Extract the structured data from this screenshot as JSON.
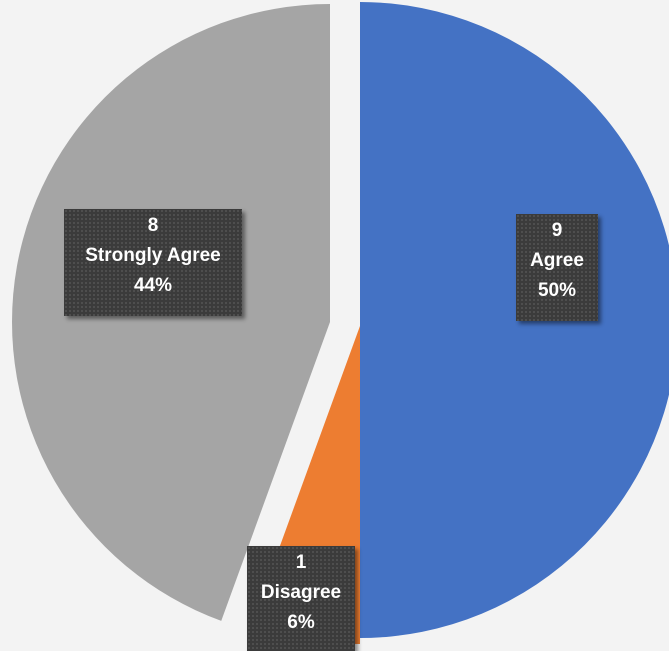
{
  "chart_data": {
    "type": "pie",
    "title": "",
    "categories": [
      "Agree",
      "Disagree",
      "Strongly Agree"
    ],
    "values": [
      9,
      1,
      8
    ],
    "percents": [
      "50%",
      "6%",
      "44%"
    ],
    "colors": [
      "#4472c4",
      "#ed7d31",
      "#a5a5a5"
    ],
    "start_angle_deg": 0,
    "exploded": true,
    "legend": "none",
    "data_labels": {
      "show_value": true,
      "show_category": true,
      "show_percent": true
    }
  }
}
